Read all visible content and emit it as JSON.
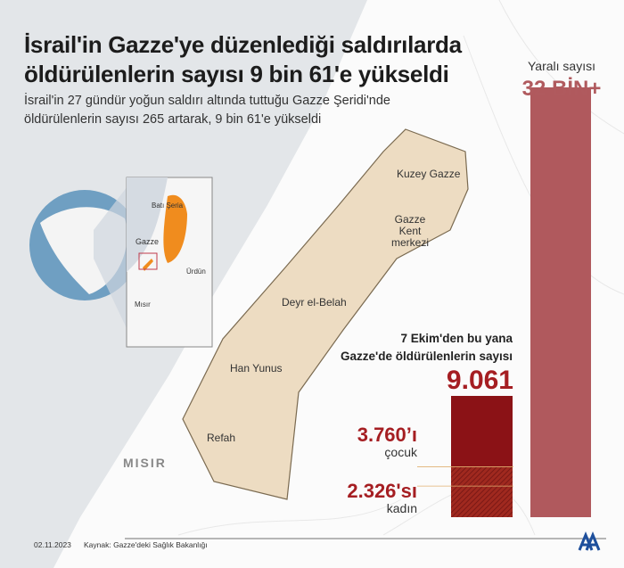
{
  "header": {
    "title_line1": "İsrail'in Gazze'ye düzenlediği saldırılarda",
    "title_line2": "öldürülenlerin sayısı 9 bin 61'e yükseldi",
    "subtitle_line1": "İsrail'in 27 gündür yoğun saldırı altında tuttuğu Gazze Şeridi'nde",
    "subtitle_line2": "öldürülenlerin sayısı 265 artarak, 9 bin 61'e yükseldi"
  },
  "map": {
    "labels": [
      "Kuzey Gazze",
      "Gazze",
      "Kent merkezi",
      "Deyr el-Belah",
      "Han Yunus",
      "Refah"
    ],
    "country": "MISIR",
    "inset": {
      "west_bank": "Batı Şeria",
      "gaza": "Gazze",
      "jordan": "Ürdün",
      "egypt": "Mısır"
    }
  },
  "injured": {
    "label": "Yaralı sayısı",
    "value": "32 BİN+"
  },
  "killed": {
    "label_line1": "7 Ekim'den bu yana",
    "label_line2": "Gazze'de öldürülenlerin sayısı",
    "value": "9.061",
    "children_value": "3.760’ı",
    "children_label": "çocuk",
    "women_value": "2.326'sı",
    "women_label": "kadın"
  },
  "footer": {
    "date": "02.11.2023",
    "source": "Kaynak: Gazze'deki Sağlık Bakanlığı",
    "logo": "AA"
  },
  "colors": {
    "injured": "#b0595d",
    "killed": "#8b1216",
    "hatch": "#a0291f",
    "sea": "#e3e6e9",
    "strip": "#eddcc2"
  },
  "chart_data": {
    "type": "bar",
    "categories": [
      "Yaralı sayısı",
      "Öldürülenler"
    ],
    "values": [
      32000,
      9061
    ],
    "breakdown": {
      "çocuk": 3760,
      "kadın": 2326
    },
    "ylim": [
      0,
      32000
    ]
  }
}
